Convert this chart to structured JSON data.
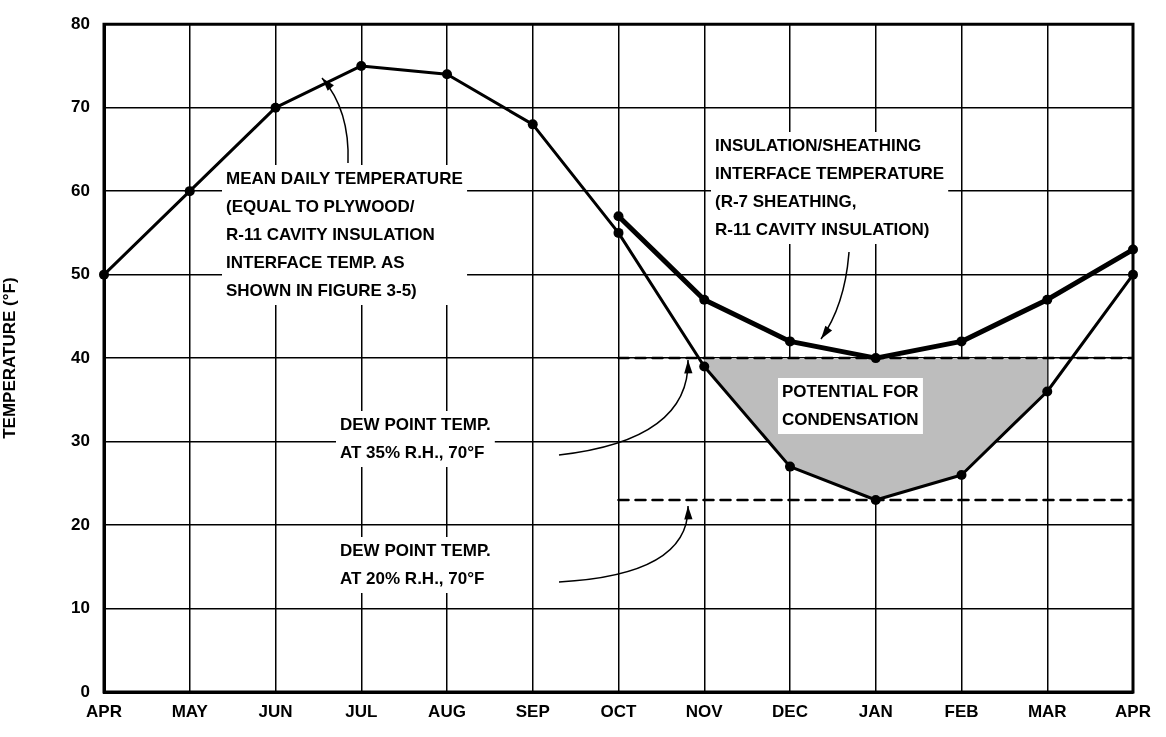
{
  "chart_data": {
    "type": "line",
    "ylabel": "TEMPERATURE (°F)",
    "categories": [
      "APR",
      "MAY",
      "JUN",
      "JUL",
      "AUG",
      "SEP",
      "OCT",
      "NOV",
      "DEC",
      "JAN",
      "FEB",
      "MAR",
      "APR"
    ],
    "series": [
      {
        "color": "#000000",
        "values": [
          50,
          60,
          70,
          75,
          74,
          68,
          55,
          39,
          27,
          23,
          26,
          36,
          50
        ],
        "lower": [
          null,
          null,
          null,
          null,
          null,
          null,
          null,
          39,
          27,
          23,
          26,
          36,
          null
        ],
        "upper": [
          null,
          null,
          null,
          null,
          null,
          null,
          null,
          40,
          40,
          40,
          40,
          40,
          null
        ]
      },
      {
        "color": "#000000",
        "values": [
          null,
          null,
          null,
          null,
          null,
          null,
          57,
          47,
          42,
          40,
          42,
          47,
          53
        ]
      },
      {
        "color": "#000000",
        "line_style": "dashed",
        "marker": "none",
        "values": [
          null,
          null,
          null,
          null,
          null,
          null,
          40,
          40,
          40,
          40,
          40,
          40,
          40
        ]
      },
      {
        "color": "#000000",
        "line_style": "dashed",
        "marker": "none",
        "values": [
          null,
          null,
          null,
          null,
          null,
          null,
          23,
          23,
          23,
          23,
          23,
          23,
          23
        ]
      }
    ],
    "ylim": [
      0,
      80
    ],
    "yticks": [
      0,
      10,
      20,
      30,
      40,
      50,
      60,
      70,
      80
    ],
    "grid": true,
    "marker": "circle",
    "line_style": "solid",
    "legend": false,
    "annotations": [
      "MEAN DAILY TEMPERATURE\n(EQUAL TO PLYWOOD/\nR-11 CAVITY INSULATION\nINTERFACE TEMP. AS\nSHOWN IN FIGURE 3-5)",
      "INSULATION/SHEATHING\nINTERFACE TEMPERATURE\n(R-7 SHEATHING,\nR-11 CAVITY INSULATION)",
      "POTENTIAL FOR\nCONDENSATION",
      "DEW POINT TEMP.\nAT 35% R.H., 70°F",
      "DEW POINT TEMP.\nAT 20% R.H., 70°F"
    ]
  }
}
